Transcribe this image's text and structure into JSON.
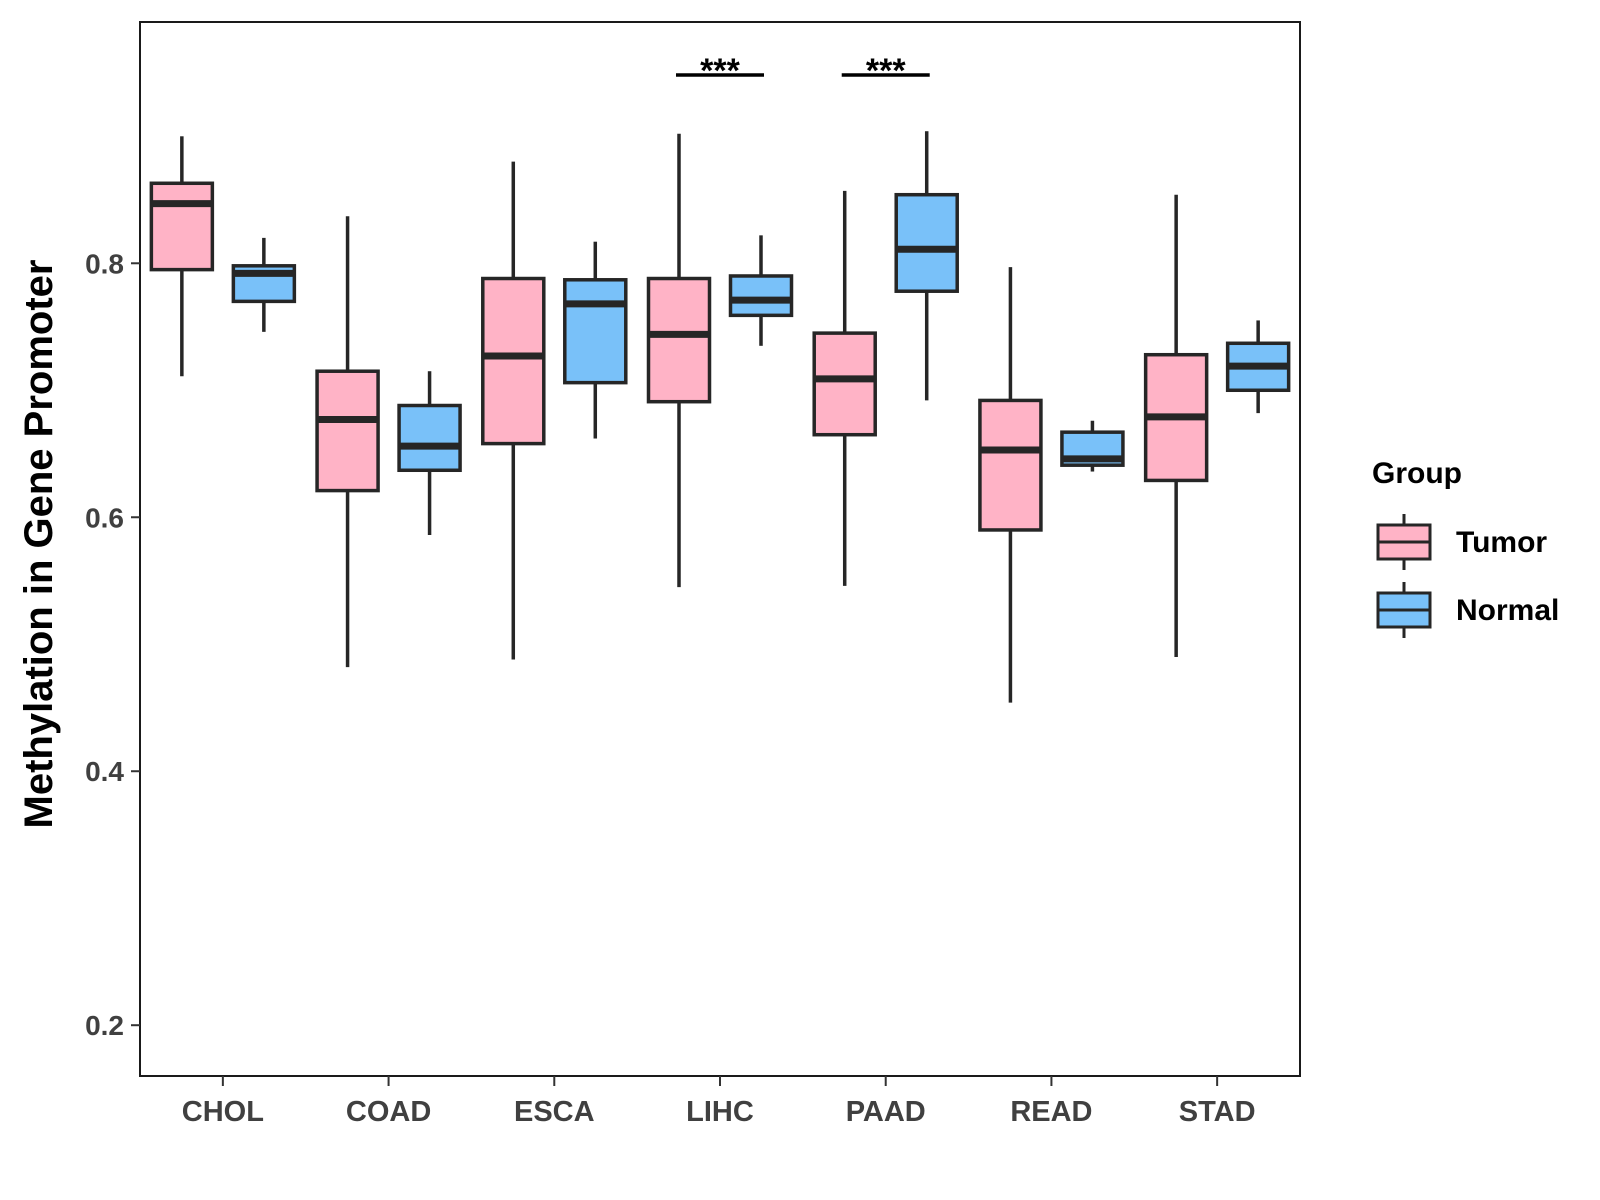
{
  "chart_data": {
    "type": "boxplot",
    "title": "",
    "xlabel": "",
    "ylabel": "Methylation in Gene Promoter",
    "ylim": [
      0.16,
      0.99
    ],
    "yticks": [
      0.2,
      0.4,
      0.6,
      0.8
    ],
    "ytick_labels": [
      "0.2",
      "0.4",
      "0.6",
      "0.8"
    ],
    "categories": [
      "CHOL",
      "COAD",
      "ESCA",
      "LIHC",
      "PAAD",
      "READ",
      "STAD"
    ],
    "grid": false,
    "legend": {
      "title": "Group",
      "position": "right",
      "entries": [
        {
          "name": "Tumor",
          "color": "#ffb3c6"
        },
        {
          "name": "Normal",
          "color": "#79c1f9"
        }
      ]
    },
    "series": [
      {
        "name": "Tumor",
        "color": "#ffb3c6",
        "boxes": [
          {
            "category": "CHOL",
            "min": 0.711,
            "q1": 0.795,
            "median": 0.847,
            "q3": 0.863,
            "max": 0.9
          },
          {
            "category": "COAD",
            "min": 0.482,
            "q1": 0.621,
            "median": 0.677,
            "q3": 0.715,
            "max": 0.837
          },
          {
            "category": "ESCA",
            "min": 0.488,
            "q1": 0.658,
            "median": 0.727,
            "q3": 0.788,
            "max": 0.88
          },
          {
            "category": "LIHC",
            "min": 0.545,
            "q1": 0.691,
            "median": 0.744,
            "q3": 0.788,
            "max": 0.902
          },
          {
            "category": "PAAD",
            "min": 0.546,
            "q1": 0.665,
            "median": 0.709,
            "q3": 0.745,
            "max": 0.857
          },
          {
            "category": "READ",
            "min": 0.454,
            "q1": 0.59,
            "median": 0.653,
            "q3": 0.692,
            "max": 0.797
          },
          {
            "category": "STAD",
            "min": 0.49,
            "q1": 0.629,
            "median": 0.679,
            "q3": 0.728,
            "max": 0.854
          }
        ]
      },
      {
        "name": "Normal",
        "color": "#79c1f9",
        "boxes": [
          {
            "category": "CHOL",
            "min": 0.746,
            "q1": 0.77,
            "median": 0.792,
            "q3": 0.798,
            "max": 0.82
          },
          {
            "category": "COAD",
            "min": 0.586,
            "q1": 0.637,
            "median": 0.656,
            "q3": 0.688,
            "max": 0.715
          },
          {
            "category": "ESCA",
            "min": 0.662,
            "q1": 0.706,
            "median": 0.768,
            "q3": 0.787,
            "max": 0.817
          },
          {
            "category": "LIHC",
            "min": 0.735,
            "q1": 0.759,
            "median": 0.771,
            "q3": 0.79,
            "max": 0.822
          },
          {
            "category": "PAAD",
            "min": 0.692,
            "q1": 0.778,
            "median": 0.811,
            "q3": 0.854,
            "max": 0.904
          },
          {
            "category": "READ",
            "min": 0.636,
            "q1": 0.641,
            "median": 0.646,
            "q3": 0.667,
            "max": 0.676
          },
          {
            "category": "STAD",
            "min": 0.682,
            "q1": 0.7,
            "median": 0.719,
            "q3": 0.737,
            "max": 0.755
          }
        ]
      }
    ],
    "annotations": [
      {
        "category": "LIHC",
        "text": "***"
      },
      {
        "category": "PAAD",
        "text": "***"
      }
    ]
  }
}
